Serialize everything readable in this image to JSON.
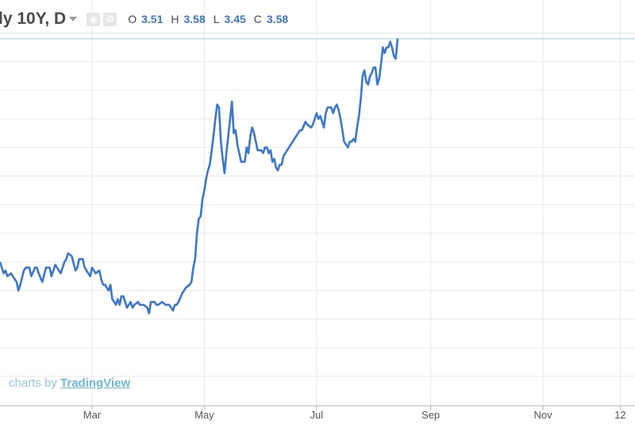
{
  "header": {
    "symbol": "ly 10Y, D",
    "icons": [
      "eye-icon",
      "gear-icon"
    ],
    "ohlc": [
      {
        "key": "O",
        "value": "3.51"
      },
      {
        "key": "H",
        "value": "3.58"
      },
      {
        "key": "L",
        "value": "3.45"
      },
      {
        "key": "C",
        "value": "3.58"
      }
    ]
  },
  "watermark": {
    "prefix": "charts by",
    "brand": "TradingView"
  },
  "colors": {
    "line": "#3b78c9",
    "line_faded": "#9fc0e6",
    "grid": "#e8e8e8",
    "price_line": "#a9cfe8",
    "axis": "#b0b0b0"
  },
  "chart_data": {
    "type": "line",
    "title": "",
    "xlabel": "",
    "ylabel": "",
    "x_ticks": [
      "Mar",
      "May",
      "Jul",
      "Sep",
      "Nov",
      "12"
    ],
    "x_tick_days": [
      59,
      120,
      181,
      243,
      304,
      346
    ],
    "x_range_days": [
      9,
      354
    ],
    "ylim": [
      2.3,
      3.66
    ],
    "grid": true,
    "last_price": 3.58,
    "series": [
      {
        "points": [
          [
            9,
            2.8
          ],
          [
            11,
            2.76
          ],
          [
            12,
            2.77
          ],
          [
            13,
            2.75
          ],
          [
            15,
            2.76
          ],
          [
            16,
            2.75
          ],
          [
            18,
            2.73
          ],
          [
            19,
            2.7
          ],
          [
            20,
            2.72
          ],
          [
            22,
            2.77
          ],
          [
            23,
            2.78
          ],
          [
            25,
            2.78
          ],
          [
            26,
            2.75
          ],
          [
            28,
            2.78
          ],
          [
            29,
            2.78
          ],
          [
            30,
            2.76
          ],
          [
            32,
            2.73
          ],
          [
            34,
            2.78
          ],
          [
            36,
            2.78
          ],
          [
            37,
            2.75
          ],
          [
            39,
            2.79
          ],
          [
            40,
            2.78
          ],
          [
            42,
            2.76
          ],
          [
            44,
            2.8
          ],
          [
            45,
            2.81
          ],
          [
            46,
            2.83
          ],
          [
            48,
            2.82
          ],
          [
            50,
            2.77
          ],
          [
            51,
            2.78
          ],
          [
            52,
            2.81
          ],
          [
            54,
            2.81
          ],
          [
            55,
            2.78
          ],
          [
            57,
            2.76
          ],
          [
            58,
            2.75
          ],
          [
            59,
            2.78
          ],
          [
            61,
            2.76
          ],
          [
            63,
            2.77
          ],
          [
            64,
            2.74
          ],
          [
            65,
            2.72
          ],
          [
            66,
            2.72
          ],
          [
            68,
            2.7
          ],
          [
            69,
            2.72
          ],
          [
            70,
            2.67
          ],
          [
            71,
            2.66
          ],
          [
            72,
            2.65
          ],
          [
            73,
            2.67
          ],
          [
            74,
            2.65
          ],
          [
            75,
            2.68
          ],
          [
            76,
            2.68
          ],
          [
            77,
            2.66
          ],
          [
            78,
            2.64
          ],
          [
            79,
            2.65
          ],
          [
            80,
            2.66
          ],
          [
            81,
            2.64
          ],
          [
            82,
            2.65
          ],
          [
            84,
            2.66
          ],
          [
            85,
            2.65
          ],
          [
            87,
            2.65
          ],
          [
            89,
            2.64
          ],
          [
            90,
            2.62
          ],
          [
            91,
            2.66
          ],
          [
            93,
            2.66
          ],
          [
            94,
            2.65
          ],
          [
            95,
            2.65
          ],
          [
            97,
            2.66
          ],
          [
            99,
            2.65
          ],
          [
            101,
            2.65
          ],
          [
            102,
            2.64
          ],
          [
            103,
            2.63
          ],
          [
            104,
            2.65
          ],
          [
            105,
            2.65
          ],
          [
            106,
            2.66
          ],
          [
            108,
            2.69
          ],
          [
            110,
            2.71
          ],
          [
            112,
            2.72
          ],
          [
            113,
            2.73
          ],
          [
            114,
            2.78
          ],
          [
            115,
            2.81
          ],
          [
            116,
            2.9
          ],
          [
            117,
            2.95
          ],
          [
            118,
            2.96
          ],
          [
            119,
            3.02
          ],
          [
            120,
            3.05
          ],
          [
            121,
            3.09
          ],
          [
            122,
            3.12
          ],
          [
            123,
            3.14
          ],
          [
            124,
            3.19
          ],
          [
            125,
            3.24
          ],
          [
            126,
            3.3
          ],
          [
            127,
            3.35
          ],
          [
            128,
            3.34
          ],
          [
            129,
            3.22
          ],
          [
            130,
            3.16
          ],
          [
            131,
            3.11
          ],
          [
            132,
            3.18
          ],
          [
            134,
            3.3
          ],
          [
            135,
            3.36
          ],
          [
            136,
            3.25
          ],
          [
            137,
            3.26
          ],
          [
            138,
            3.21
          ],
          [
            139,
            3.18
          ],
          [
            140,
            3.15
          ],
          [
            142,
            3.15
          ],
          [
            143,
            3.2
          ],
          [
            144,
            3.18
          ],
          [
            145,
            3.24
          ],
          [
            146,
            3.27
          ],
          [
            147,
            3.25
          ],
          [
            148,
            3.22
          ],
          [
            149,
            3.19
          ],
          [
            151,
            3.19
          ],
          [
            152,
            3.18
          ],
          [
            153,
            3.2
          ],
          [
            154,
            3.2
          ],
          [
            155,
            3.18
          ],
          [
            156,
            3.19
          ],
          [
            157,
            3.15
          ],
          [
            158,
            3.16
          ],
          [
            159,
            3.13
          ],
          [
            160,
            3.12
          ],
          [
            161,
            3.14
          ],
          [
            162,
            3.14
          ],
          [
            163,
            3.17
          ],
          [
            164,
            3.18
          ],
          [
            166,
            3.2
          ],
          [
            167,
            3.21
          ],
          [
            169,
            3.23
          ],
          [
            170,
            3.24
          ],
          [
            172,
            3.26
          ],
          [
            173,
            3.26
          ],
          [
            175,
            3.29
          ],
          [
            176,
            3.28
          ],
          [
            178,
            3.27
          ],
          [
            179,
            3.28
          ],
          [
            181,
            3.32
          ],
          [
            182,
            3.3
          ],
          [
            183,
            3.31
          ],
          [
            184,
            3.29
          ],
          [
            185,
            3.27
          ],
          [
            186,
            3.32
          ],
          [
            187,
            3.34
          ],
          [
            188,
            3.34
          ],
          [
            189,
            3.34
          ],
          [
            190,
            3.32
          ],
          [
            191,
            3.34
          ],
          [
            192,
            3.35
          ],
          [
            193,
            3.33
          ],
          [
            194,
            3.3
          ],
          [
            195,
            3.26
          ],
          [
            196,
            3.22
          ],
          [
            197,
            3.21
          ],
          [
            198,
            3.2
          ],
          [
            199,
            3.22
          ],
          [
            200,
            3.22
          ],
          [
            201,
            3.23
          ],
          [
            202,
            3.22
          ],
          [
            203,
            3.27
          ],
          [
            204,
            3.31
          ],
          [
            205,
            3.37
          ],
          [
            206,
            3.45
          ],
          [
            207,
            3.47
          ],
          [
            208,
            3.43
          ],
          [
            209,
            3.42
          ],
          [
            210,
            3.45
          ],
          [
            211,
            3.46
          ],
          [
            212,
            3.48
          ],
          [
            213,
            3.48
          ],
          [
            214,
            3.42
          ],
          [
            215,
            3.44
          ],
          [
            216,
            3.49
          ],
          [
            217,
            3.55
          ],
          [
            218,
            3.53
          ],
          [
            219,
            3.55
          ],
          [
            220,
            3.55
          ],
          [
            221,
            3.57
          ],
          [
            222,
            3.55
          ],
          [
            223,
            3.52
          ],
          [
            224,
            3.51
          ],
          [
            225,
            3.58
          ]
        ]
      }
    ]
  }
}
